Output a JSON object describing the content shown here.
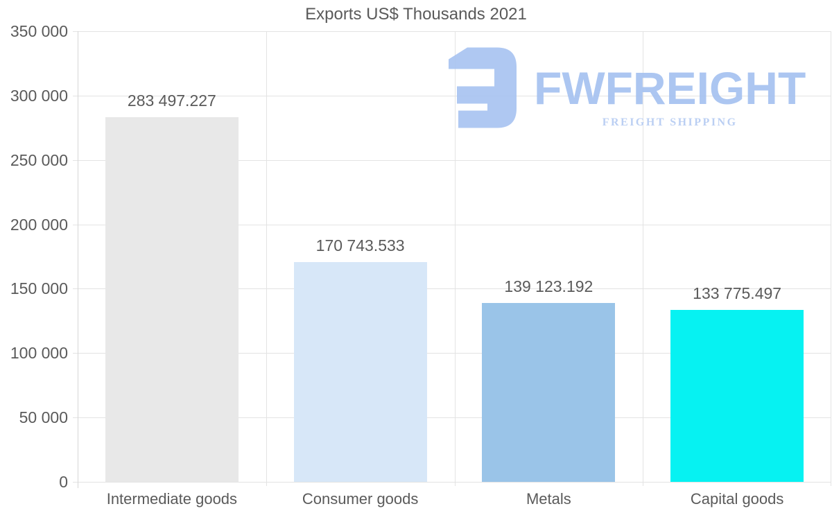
{
  "title": "Exports US$ Thousands 2021",
  "chart_data": {
    "type": "bar",
    "title": "Exports US$ Thousands 2021",
    "categories": [
      "Intermediate goods",
      "Consumer goods",
      "Metals",
      "Capital goods"
    ],
    "values": [
      283497.227,
      170743.533,
      139123.192,
      133775.497
    ],
    "value_labels": [
      "283 497.227",
      "170 743.533",
      "139 123.192",
      "133 775.497"
    ],
    "bar_colors": [
      "#e8e8e8",
      "#d7e7f8",
      "#9ac4e8",
      "#06f2f2"
    ],
    "xlabel": "",
    "ylabel": "",
    "ylim": [
      0,
      350000
    ],
    "ytick_step": 50000,
    "ytick_labels": [
      "0",
      "50 000",
      "100 000",
      "150 000",
      "200 000",
      "250 000",
      "300 000",
      "350 000"
    ],
    "grid": true,
    "legend": false
  },
  "watermark": {
    "brand": "FWFREIGHT",
    "tagline": "FREIGHT SHIPPING",
    "brand_color": "#a6c2f0",
    "tagline_color": "#b6ccf2",
    "icon": "fwfreight-mirrored-f-mark"
  },
  "style": {
    "background": "#ffffff",
    "text_color": "#5a5a5a",
    "grid_color": "#e3e3e3",
    "axis_color": "#d7d7d7"
  }
}
